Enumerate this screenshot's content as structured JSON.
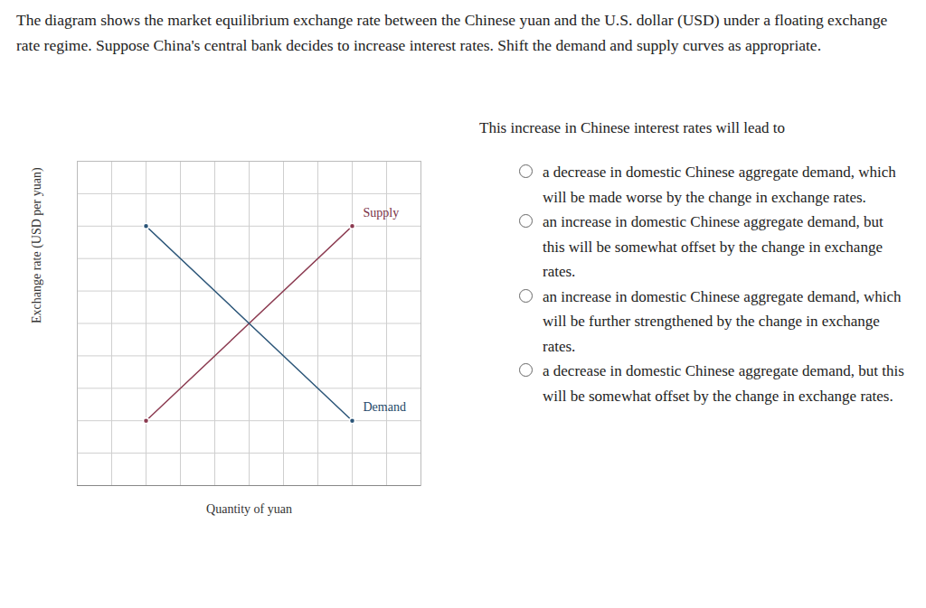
{
  "header": {
    "text": "The diagram shows the market equilibrium exchange rate between the Chinese yuan and the U.S. dollar (USD) under a floating exchange rate regime. Suppose China's central bank decides to increase interest rates. Shift the demand and supply curves as appropriate."
  },
  "question": {
    "prompt": "This increase in Chinese interest rates will lead to",
    "options": [
      "a decrease in domestic Chinese aggregate demand, which will be made worse by the change in exchange rates.",
      "an increase in domestic Chinese aggregate demand, but this will be somewhat offset by the change in exchange rates.",
      "an increase in domestic Chinese aggregate demand, which will be further strengthened by the change in exchange rates.",
      "a decrease in domestic Chinese aggregate demand, but this will be somewhat offset by the change in exchange rates."
    ]
  },
  "chart_data": {
    "type": "line",
    "x_label": "Quantity of yuan",
    "y_label": "Exchange rate (USD per yuan)",
    "series": [
      {
        "name": "Supply",
        "color": "#8b3a50",
        "marker": "circle",
        "x": [
          2,
          8
        ],
        "values": [
          2,
          8
        ]
      },
      {
        "name": "Demand",
        "color": "#2b5578",
        "marker": "circle",
        "x": [
          2,
          8
        ],
        "values": [
          8,
          2
        ]
      }
    ],
    "xlim": [
      0,
      10
    ],
    "ylim": [
      0,
      10
    ],
    "xticks": [
      0,
      1,
      2,
      3,
      4,
      5,
      6,
      7,
      8,
      9,
      10
    ],
    "yticks": [
      0,
      1,
      2,
      3,
      4,
      5,
      6,
      7,
      8,
      9,
      10
    ],
    "grid": true,
    "tick_labels": false
  }
}
